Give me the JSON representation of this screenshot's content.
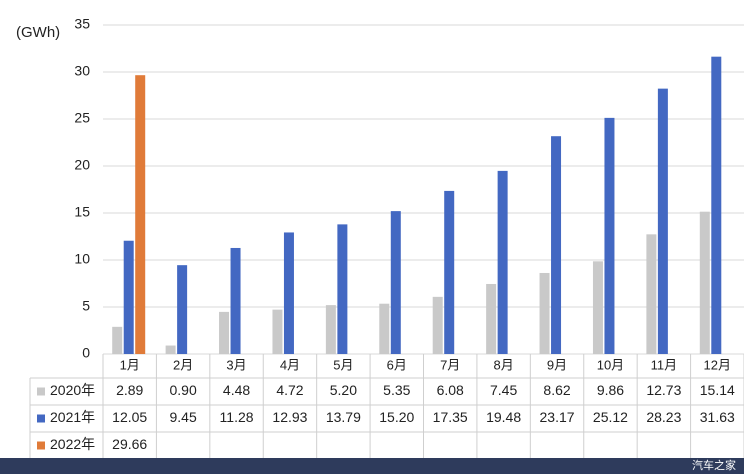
{
  "chart_data": {
    "type": "bar",
    "y_label": "(GWh)",
    "categories": [
      "1月",
      "2月",
      "3月",
      "4月",
      "5月",
      "6月",
      "7月",
      "8月",
      "9月",
      "10月",
      "11月",
      "12月"
    ],
    "series": [
      {
        "name": "2020年",
        "color": "#c9c9c9",
        "values": [
          2.89,
          0.9,
          4.48,
          4.72,
          5.2,
          5.35,
          6.08,
          7.45,
          8.62,
          9.86,
          12.73,
          15.14
        ],
        "value_labels": [
          "2.89",
          "0.90",
          "4.48",
          "4.72",
          "5.20",
          "5.35",
          "6.08",
          "7.45",
          "8.62",
          "9.86",
          "12.73",
          "15.14"
        ]
      },
      {
        "name": "2021年",
        "color": "#4368c2",
        "values": [
          12.05,
          9.45,
          11.28,
          12.93,
          13.79,
          15.2,
          17.35,
          19.48,
          23.17,
          25.12,
          28.23,
          31.63
        ],
        "value_labels": [
          "12.05",
          "9.45",
          "11.28",
          "12.93",
          "13.79",
          "15.20",
          "17.35",
          "19.48",
          "23.17",
          "25.12",
          "28.23",
          "31.63"
        ]
      },
      {
        "name": "2022年",
        "color": "#e07b39",
        "values": [
          29.66,
          null,
          null,
          null,
          null,
          null,
          null,
          null,
          null,
          null,
          null,
          null
        ],
        "value_labels": [
          "29.66",
          null,
          null,
          null,
          null,
          null,
          null,
          null,
          null,
          null,
          null,
          null
        ]
      }
    ],
    "ylim": [
      0,
      35
    ],
    "yticks": [
      0,
      5,
      10,
      15,
      20,
      25,
      30,
      35
    ],
    "grid": true,
    "watermark": "汽车之家"
  }
}
